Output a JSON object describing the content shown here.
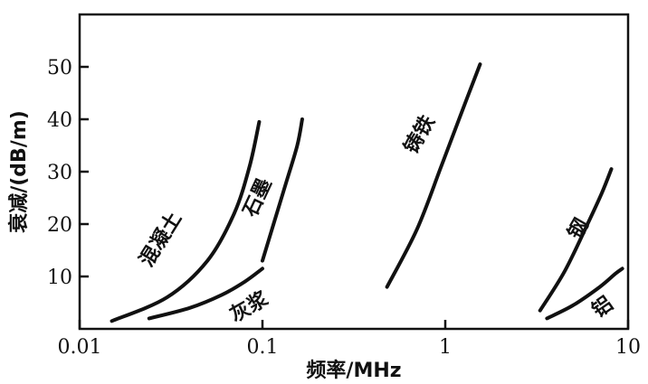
{
  "chart_data": {
    "type": "line",
    "title": "",
    "xlabel": "频率/MHz",
    "ylabel": "衰减/(dB/m)",
    "xscale": "log",
    "xlim": [
      0.01,
      10
    ],
    "ylim": [
      0,
      60
    ],
    "grid": false,
    "legend": "none",
    "x_ticks": [
      {
        "value": 0.01,
        "label": "0.01"
      },
      {
        "value": 0.1,
        "label": "0.1"
      },
      {
        "value": 1,
        "label": "1"
      },
      {
        "value": 10,
        "label": "10"
      }
    ],
    "y_ticks": [
      {
        "value": 10,
        "label": "10"
      },
      {
        "value": 20,
        "label": "20"
      },
      {
        "value": 30,
        "label": "30"
      },
      {
        "value": 40,
        "label": "40"
      },
      {
        "value": 50,
        "label": "50"
      }
    ],
    "series": [
      {
        "name": "混凝土",
        "points": [
          [
            0.015,
            1.5
          ],
          [
            0.03,
            6
          ],
          [
            0.05,
            13
          ],
          [
            0.07,
            22
          ],
          [
            0.085,
            31
          ],
          [
            0.096,
            39.5
          ]
        ]
      },
      {
        "name": "石墨",
        "points": [
          [
            0.1,
            13
          ],
          [
            0.115,
            20
          ],
          [
            0.135,
            28
          ],
          [
            0.155,
            35
          ],
          [
            0.165,
            40
          ]
        ]
      },
      {
        "name": "灰浆",
        "points": [
          [
            0.024,
            2
          ],
          [
            0.04,
            4
          ],
          [
            0.06,
            6.5
          ],
          [
            0.08,
            9
          ],
          [
            0.1,
            11.5
          ]
        ]
      },
      {
        "name": "铸铁",
        "points": [
          [
            0.48,
            8
          ],
          [
            0.7,
            19
          ],
          [
            0.95,
            31
          ],
          [
            1.25,
            42
          ],
          [
            1.55,
            50.5
          ]
        ]
      },
      {
        "name": "钢",
        "points": [
          [
            3.3,
            3.5
          ],
          [
            4.5,
            11
          ],
          [
            6,
            20
          ],
          [
            7.2,
            26
          ],
          [
            8.1,
            30.5
          ]
        ]
      },
      {
        "name": "铝",
        "points": [
          [
            3.6,
            2
          ],
          [
            5,
            4.5
          ],
          [
            7,
            8
          ],
          [
            8.5,
            10.5
          ],
          [
            9.3,
            11.5
          ]
        ]
      }
    ],
    "annotations": [
      {
        "text": "混凝土",
        "x": 0.028,
        "y": 17,
        "angle": -58
      },
      {
        "text": "石墨",
        "x": 0.095,
        "y": 25,
        "angle": -65
      },
      {
        "text": "灰浆",
        "x": 0.085,
        "y": 4,
        "angle": -30
      },
      {
        "text": "铸铁",
        "x": 0.73,
        "y": 37,
        "angle": -60
      },
      {
        "text": "钢",
        "x": 5.4,
        "y": 19,
        "angle": -60
      },
      {
        "text": "铝",
        "x": 7.3,
        "y": 4,
        "angle": -35
      }
    ]
  }
}
